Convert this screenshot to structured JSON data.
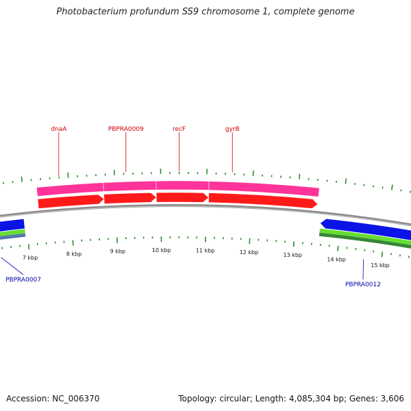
{
  "title": "Photobacterium profundum SS9 chromosome 1, complete genome",
  "footer": {
    "accession": "Accession: NC_006370",
    "stats": "Topology: circular; Length: 4,085,304 bp; Genes: 3,606"
  },
  "colors": {
    "backbone": "#8a8a8a",
    "tick": "#2e8b2e",
    "forward_cds": "#ff1a1a",
    "forward_feature": "#ff3399",
    "reverse_cds": "#0a14e6",
    "reverse_feature_1": "#66dd33",
    "reverse_feature_2": "#338833",
    "reverse_feature_3": "#5577aa",
    "label_forward": "#cc0000",
    "label_reverse": "#0000aa"
  },
  "scale_labels": [
    {
      "kbp": 7,
      "text": "7 kbp"
    },
    {
      "kbp": 8,
      "text": "8 kbp"
    },
    {
      "kbp": 9,
      "text": "9 kbp"
    },
    {
      "kbp": 10,
      "text": "10 kbp"
    },
    {
      "kbp": 11,
      "text": "11 kbp"
    },
    {
      "kbp": 12,
      "text": "12 kbp"
    },
    {
      "kbp": 13,
      "text": "13 kbp"
    },
    {
      "kbp": 14,
      "text": "14 kbp"
    },
    {
      "kbp": 15,
      "text": "15 kbp"
    }
  ],
  "genes": {
    "forward": [
      {
        "label": "dnaA",
        "start_kbp": 7.3,
        "end_kbp": 8.75
      },
      {
        "label": "PBPRA0009",
        "start_kbp": 8.75,
        "end_kbp": 9.9
      },
      {
        "label": "recF",
        "start_kbp": 9.9,
        "end_kbp": 11.05
      },
      {
        "label": "gyrB",
        "start_kbp": 11.05,
        "end_kbp": 13.45
      }
    ],
    "reverse": [
      {
        "label": "PBPRA0007",
        "start_kbp": 6.2,
        "end_kbp": 6.95
      },
      {
        "label": "PBPRA0012",
        "start_kbp": 13.55,
        "end_kbp": 15.9
      }
    ]
  }
}
